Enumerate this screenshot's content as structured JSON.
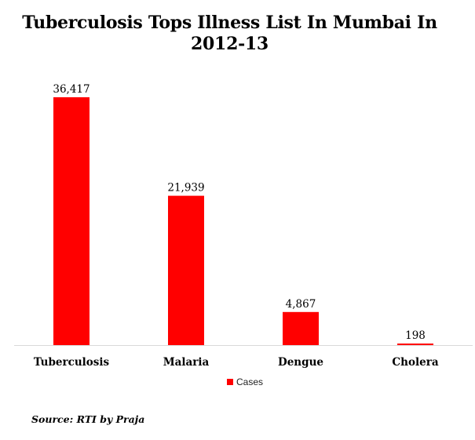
{
  "chart_data": {
    "type": "bar",
    "title_lines": [
      "Tuberculosis Tops Illness List In Mumbai In",
      "2012-13"
    ],
    "categories": [
      "Tuberculosis",
      "Malaria",
      "Dengue",
      "Cholera"
    ],
    "series": [
      {
        "name": "Cases",
        "values": [
          36417,
          21939,
          4867,
          198
        ],
        "labels": [
          "36,417",
          "21,939",
          "4,867",
          "198"
        ]
      }
    ],
    "ylim": [
      0,
      40000
    ],
    "grid": false,
    "legend": "bottom",
    "bar_color": "#ff0000"
  },
  "source": "Source: RTI by Praja"
}
